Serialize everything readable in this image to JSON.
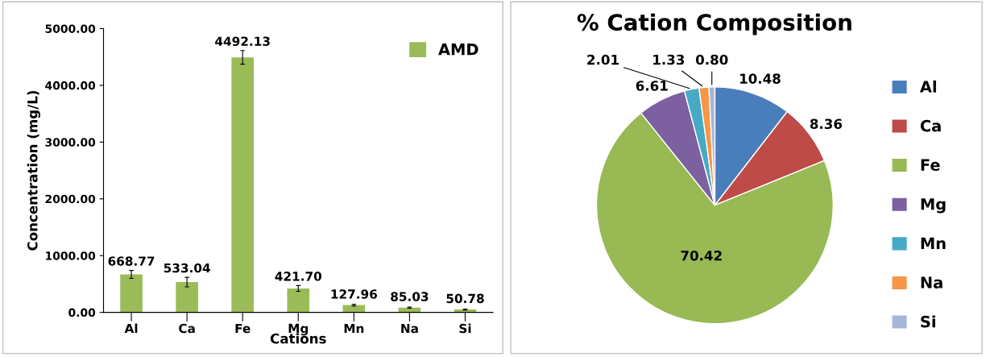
{
  "chart_data": [
    {
      "type": "bar",
      "xlabel": "Cations",
      "ylabel": "Concentration (mg/L)",
      "categories": [
        "Al",
        "Ca",
        "Fe",
        "Mg",
        "Mn",
        "Na",
        "Si"
      ],
      "series": [
        {
          "name": "AMD",
          "color": "#9bbb59",
          "values": [
            668.77,
            533.04,
            4492.13,
            421.7,
            127.96,
            85.03,
            50.78
          ],
          "value_labels": [
            "668.77",
            "533.04",
            "4492.13",
            "421.70",
            "127.96",
            "85.03",
            "50.78"
          ],
          "errors": [
            70,
            85,
            120,
            50,
            15,
            10,
            8
          ]
        }
      ],
      "ylim": [
        0,
        5000
      ],
      "yticks": [
        {
          "value": 0,
          "label": "0.00"
        },
        {
          "value": 1000,
          "label": "1000.00"
        },
        {
          "value": 2000,
          "label": "2000.00"
        },
        {
          "value": 3000,
          "label": "3000.00"
        },
        {
          "value": 4000,
          "label": "4000.00"
        },
        {
          "value": 5000,
          "label": "5000.00"
        }
      ],
      "grid": false,
      "legend": "top right"
    },
    {
      "type": "pie",
      "title": "% Cation Composition",
      "categories": [
        "Al",
        "Ca",
        "Fe",
        "Mg",
        "Mn",
        "Na",
        "Si"
      ],
      "values": [
        10.48,
        8.36,
        70.42,
        6.61,
        2.01,
        1.33,
        0.8
      ],
      "value_labels": [
        "10.48",
        "8.36",
        "70.42",
        "6.61",
        "2.01",
        "1.33",
        "0.80"
      ],
      "colors": [
        "#4a7ebb",
        "#be4b48",
        "#98b954",
        "#7d60a0",
        "#46aac5",
        "#f79646",
        "#a5b6d9"
      ],
      "legend": "right"
    }
  ]
}
